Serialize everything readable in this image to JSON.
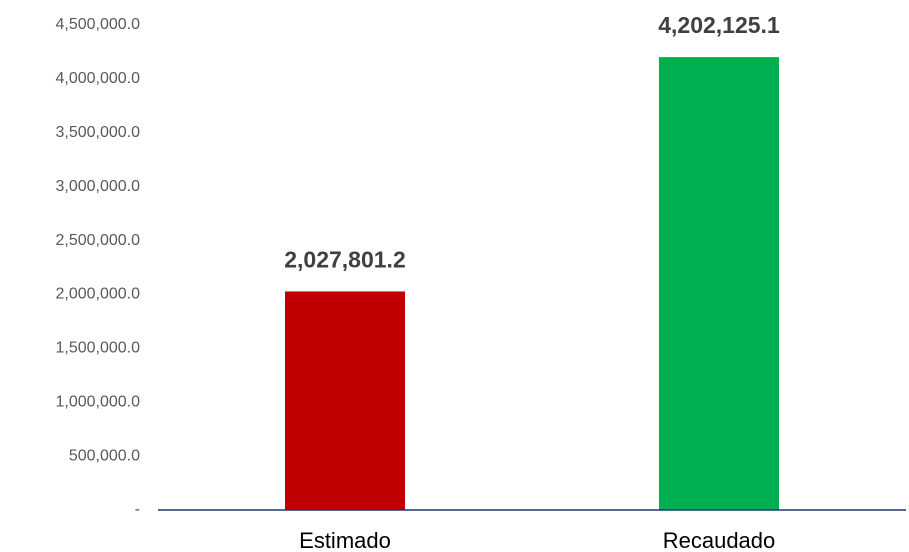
{
  "chart_data": {
    "type": "bar",
    "categories": [
      "Estimado",
      "Recaudado"
    ],
    "values": [
      2027801.2,
      4202125.1
    ],
    "value_labels": [
      "2,027,801.2",
      "4,202,125.1"
    ],
    "colors": [
      "#c00000",
      "#00b050"
    ],
    "ylim": [
      0,
      4500000
    ],
    "yticks": [
      {
        "value": 0,
        "label": "-"
      },
      {
        "value": 500000,
        "label": "500,000.0"
      },
      {
        "value": 1000000,
        "label": "1,000,000.0"
      },
      {
        "value": 1500000,
        "label": "1,500,000.0"
      },
      {
        "value": 2000000,
        "label": "2,000,000.0"
      },
      {
        "value": 2500000,
        "label": "2,500,000.0"
      },
      {
        "value": 3000000,
        "label": "3,000,000.0"
      },
      {
        "value": 3500000,
        "label": "3,500,000.0"
      },
      {
        "value": 4000000,
        "label": "4,000,000.0"
      },
      {
        "value": 4500000,
        "label": "4,500,000.0"
      }
    ],
    "grid": false
  }
}
